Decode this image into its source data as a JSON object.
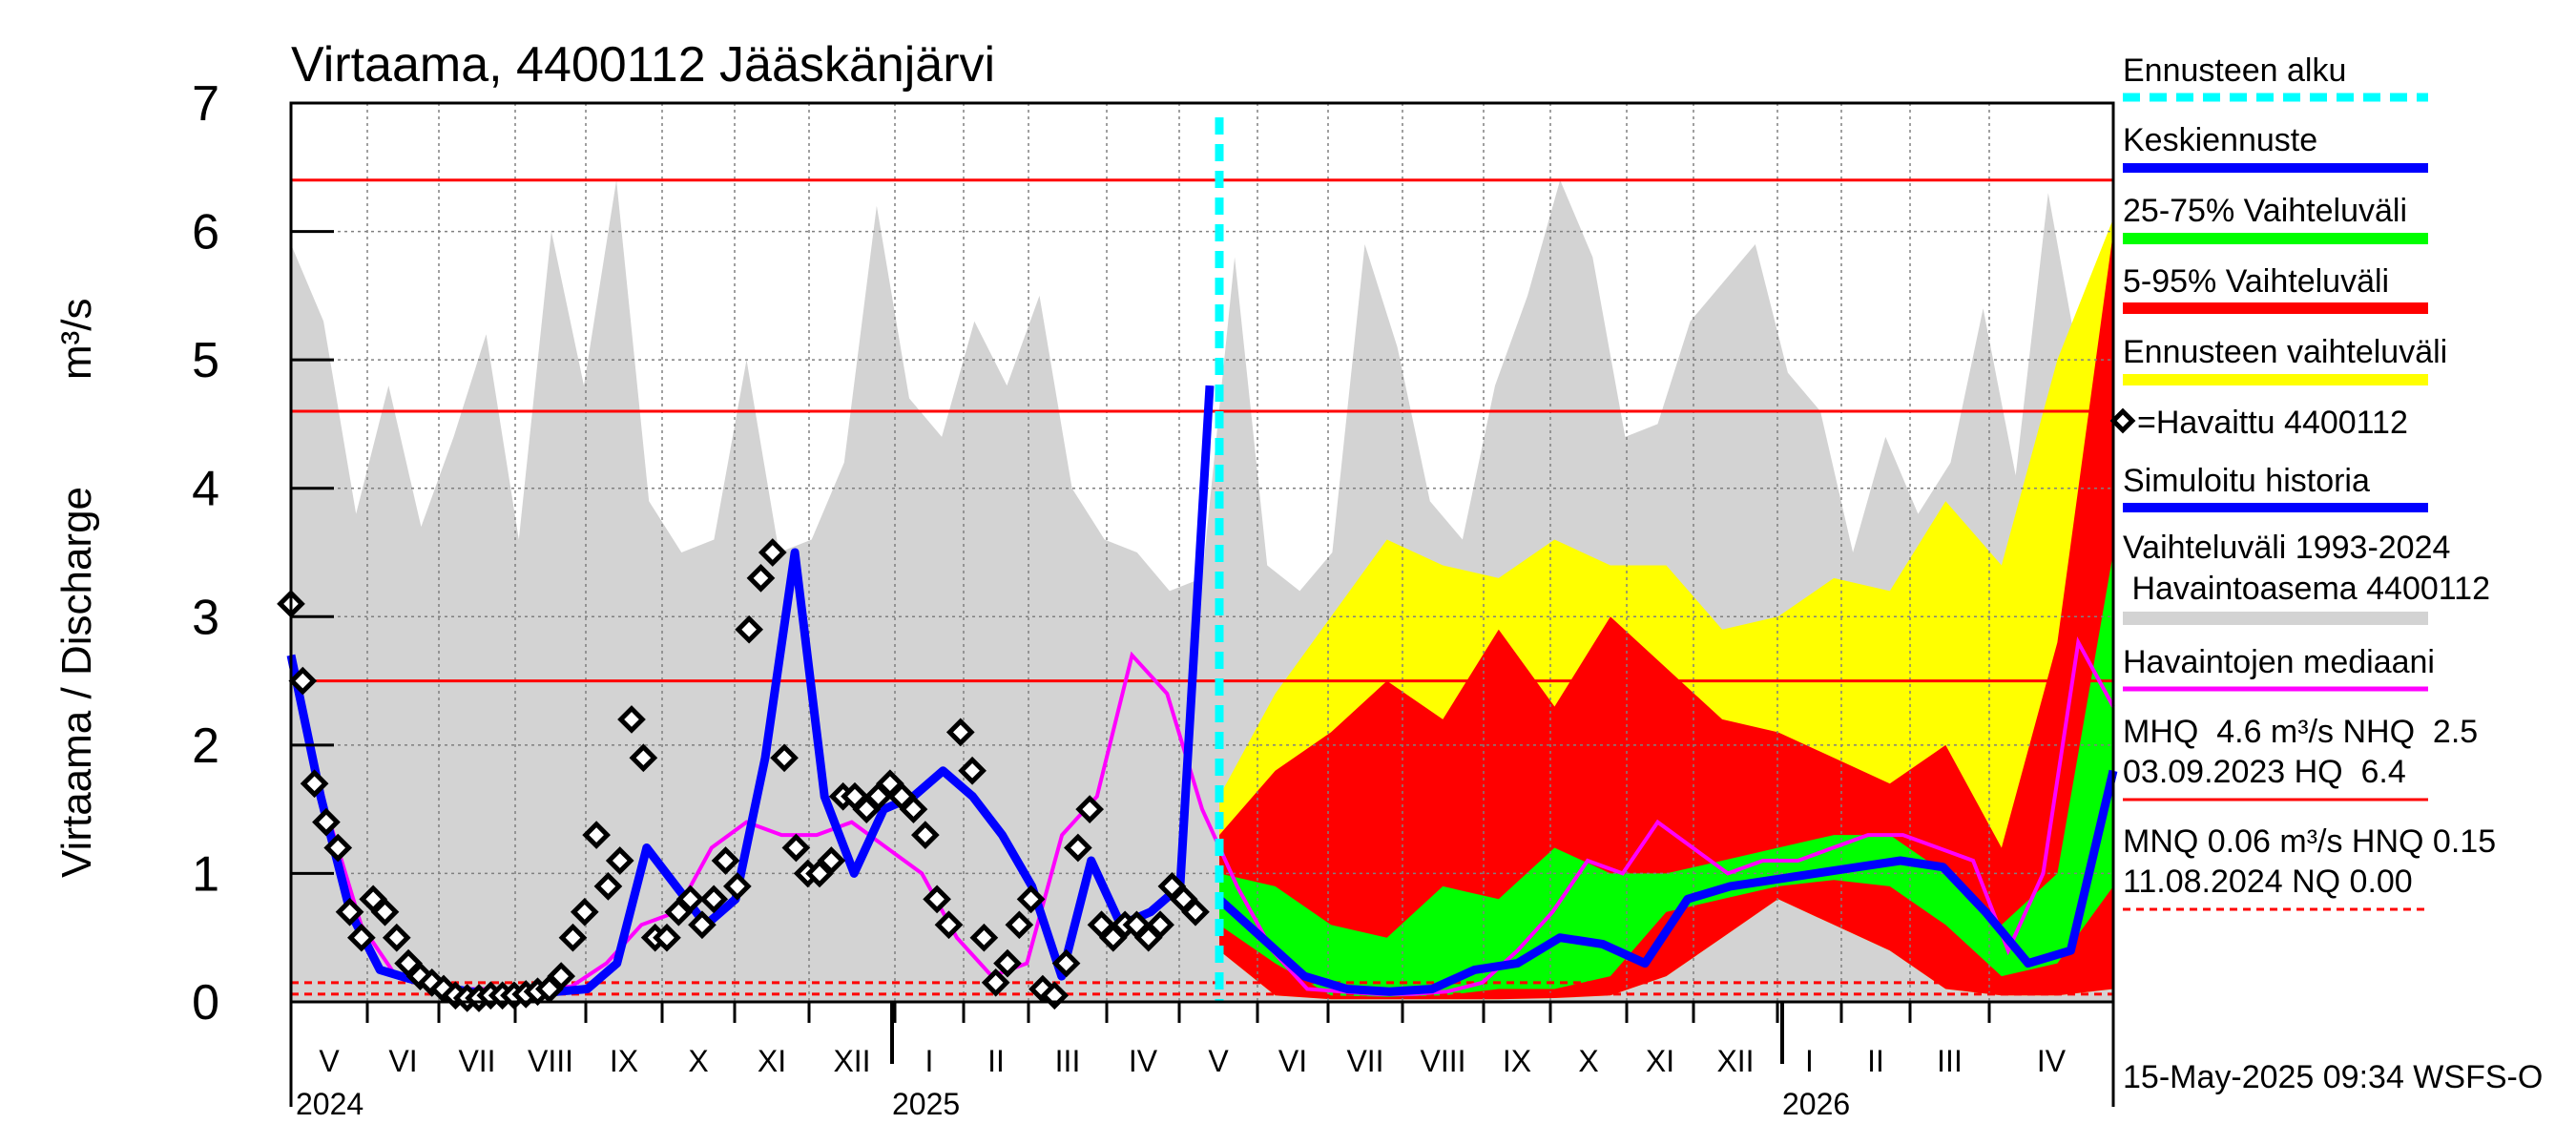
{
  "chart_data": {
    "type": "line",
    "title": "Virtaama, 4400112 Jääskänjärvi",
    "ylabel": "Virtaama / Discharge",
    "yunit": "m³/s",
    "ylim": [
      0,
      7
    ],
    "yticks": [
      "0",
      "1",
      "2",
      "3",
      "4",
      "5",
      "6",
      "7"
    ],
    "month_labels": [
      "V",
      "VI",
      "VII",
      "VIII",
      "IX",
      "X",
      "XI",
      "XII",
      "I",
      "II",
      "III",
      "IV",
      "V",
      "VI",
      "VII",
      "VIII",
      "IX",
      "X",
      "XI",
      "XII",
      "I",
      "II",
      "III",
      "IV"
    ],
    "year_labels": [
      "2024",
      "2025",
      "2026"
    ],
    "forecast_start": "2025-05-15",
    "reference_lines": {
      "MHQ": 4.6,
      "NHQ": 2.5,
      "HQ": 6.4,
      "MNQ": 0.06,
      "HNQ": 0.15,
      "NQ": 0.0
    },
    "series": [
      {
        "name": "Vaihteluväli 1993-2024 Havaintoasema 4400112 (max)",
        "color": "#d3d3d3",
        "values": [
          5.9,
          5.3,
          3.8,
          4.8,
          3.7,
          4.4,
          5.2,
          3.6,
          6.0,
          4.8,
          6.4,
          3.9,
          3.5,
          3.6,
          5.0,
          3.5,
          3.6,
          4.2,
          6.2,
          4.7,
          4.4,
          5.3,
          4.8,
          5.5,
          4.0,
          3.6,
          3.5,
          3.2,
          3.3,
          5.8,
          3.4,
          3.2,
          3.5,
          5.9,
          5.1,
          3.9,
          3.6,
          4.8,
          5.5,
          6.4,
          5.8,
          4.4,
          4.5,
          5.3,
          5.6,
          5.9,
          4.9,
          4.6,
          3.5,
          4.4,
          3.8,
          4.2,
          5.4,
          4.1,
          6.3,
          4.9,
          4.5
        ]
      },
      {
        "name": "Simuloitu historia",
        "color": "#0000ff",
        "values": [
          2.7,
          1.6,
          0.7,
          0.25,
          0.18,
          0.12,
          0.08,
          0.06,
          0.07,
          0.08,
          0.1,
          0.3,
          1.2,
          0.9,
          0.6,
          0.8,
          1.9,
          3.5,
          1.6,
          1.0,
          1.5,
          1.6,
          1.8,
          1.6,
          1.3,
          0.9,
          0.2,
          1.1,
          0.6,
          0.7,
          0.9,
          4.8
        ]
      },
      {
        "name": "Havaintojen mediaani",
        "color": "#ff00ff",
        "values": [
          2.7,
          1.5,
          0.6,
          0.2,
          0.12,
          0.1,
          0.1,
          0.1,
          0.12,
          0.3,
          0.6,
          0.7,
          1.2,
          1.4,
          1.3,
          1.3,
          1.4,
          1.2,
          1.0,
          0.5,
          0.2,
          0.3,
          1.3,
          1.6,
          2.7,
          2.4,
          1.5,
          0.9,
          0.4,
          0.1,
          0.08,
          0.06,
          0.06,
          0.08,
          0.15,
          0.4,
          0.7,
          1.1,
          1.0,
          1.4,
          1.2,
          1.0,
          1.1,
          1.1,
          1.2,
          1.3,
          1.3,
          1.2,
          1.1,
          0.4,
          1.0,
          2.8,
          2.3
        ]
      },
      {
        "name": "Keskiennuste",
        "color": "#0000ff",
        "values": [
          0.8,
          0.5,
          0.2,
          0.1,
          0.08,
          0.1,
          0.25,
          0.3,
          0.5,
          0.45,
          0.3,
          0.8,
          0.9,
          0.95,
          1.0,
          1.05,
          1.1,
          1.05,
          0.7,
          0.3,
          0.4,
          1.8
        ]
      },
      {
        "name": "25-75% Vaihteluväli",
        "color": "#00ff00",
        "lo": [
          0.6,
          0.3,
          0.05,
          0.04,
          0.05,
          0.1,
          0.1,
          0.2,
          0.7,
          0.8,
          0.9,
          0.95,
          0.9,
          0.6,
          0.2,
          0.3,
          0.9
        ],
        "hi": [
          1.0,
          0.9,
          0.6,
          0.5,
          0.9,
          0.8,
          1.2,
          1.0,
          1.0,
          1.1,
          1.2,
          1.3,
          1.3,
          1.0,
          0.6,
          1.0,
          3.5
        ]
      },
      {
        "name": "5-95% Vaihteluväli",
        "color": "#ff0000",
        "lo": [
          0.4,
          0.05,
          0.02,
          0.02,
          0.02,
          0.02,
          0.03,
          0.05,
          0.2,
          0.5,
          0.8,
          0.6,
          0.4,
          0.1,
          0.05,
          0.05,
          0.1
        ],
        "hi": [
          1.3,
          1.8,
          2.1,
          2.5,
          2.2,
          2.9,
          2.3,
          3.0,
          2.6,
          2.2,
          2.1,
          1.9,
          1.7,
          2.0,
          1.2,
          2.8,
          6.0
        ]
      },
      {
        "name": "Ennusteen vaihteluväli",
        "color": "#ffff00",
        "hi": [
          1.6,
          2.4,
          3.0,
          3.6,
          3.4,
          3.3,
          3.6,
          3.4,
          3.4,
          2.9,
          3.0,
          3.3,
          3.2,
          3.9,
          3.4,
          5.0,
          6.1
        ]
      },
      {
        "name": "=Havaittu 4400112",
        "color": "#000000",
        "values": [
          3.1,
          2.5,
          1.7,
          1.4,
          1.2,
          0.7,
          0.5,
          0.8,
          0.7,
          0.5,
          0.3,
          0.2,
          0.15,
          0.1,
          0.05,
          0.03,
          0.03,
          0.05,
          0.05,
          0.05,
          0.06,
          0.08,
          0.1,
          0.2,
          0.5,
          0.7,
          1.3,
          0.9,
          1.1,
          2.2,
          1.9,
          0.5,
          0.5,
          0.7,
          0.8,
          0.6,
          0.8,
          1.1,
          0.9,
          2.9,
          3.3,
          3.5,
          1.9,
          1.2,
          1.0,
          1.0,
          1.1,
          1.6,
          1.6,
          1.5,
          1.6,
          1.7,
          1.6,
          1.5,
          1.3,
          0.8,
          0.6,
          2.1,
          1.8,
          0.5,
          0.15,
          0.3,
          0.6,
          0.8,
          0.1,
          0.05,
          0.3,
          1.2,
          1.5,
          0.6,
          0.5,
          0.6,
          0.6,
          0.5,
          0.6,
          0.9,
          0.8,
          0.7
        ]
      }
    ]
  },
  "legend": {
    "ennusteen_alku": "Ennusteen alku",
    "keskiennuste": "Keskiennuste",
    "vaihteluvali_25_75": "25-75% Vaihteluväli",
    "vaihteluvali_5_95": "5-95% Vaihteluväli",
    "ennusteen_vaihteluvali": "Ennusteen vaihteluväli",
    "havaittu": "=Havaittu 4400112",
    "simuloitu": "Simuloitu historia",
    "vaihteluvali_hist_1": "Vaihteluväli 1993-2024",
    "vaihteluvali_hist_2": " Havaintoasema 4400112",
    "mediaani": "Havaintojen mediaani",
    "mhq_line1": "MHQ  4.6 m³/s NHQ  2.5",
    "mhq_line2": "03.09.2023 HQ  6.4",
    "mnq_line1": "MNQ 0.06 m³/s HNQ 0.15",
    "mnq_line2": "11.08.2024 NQ 0.00"
  },
  "footer": "15-May-2025 09:34 WSFS-O",
  "colors": {
    "threshold": "#ff0000",
    "forecast_start": "#00ffff",
    "grid": "#808080"
  }
}
